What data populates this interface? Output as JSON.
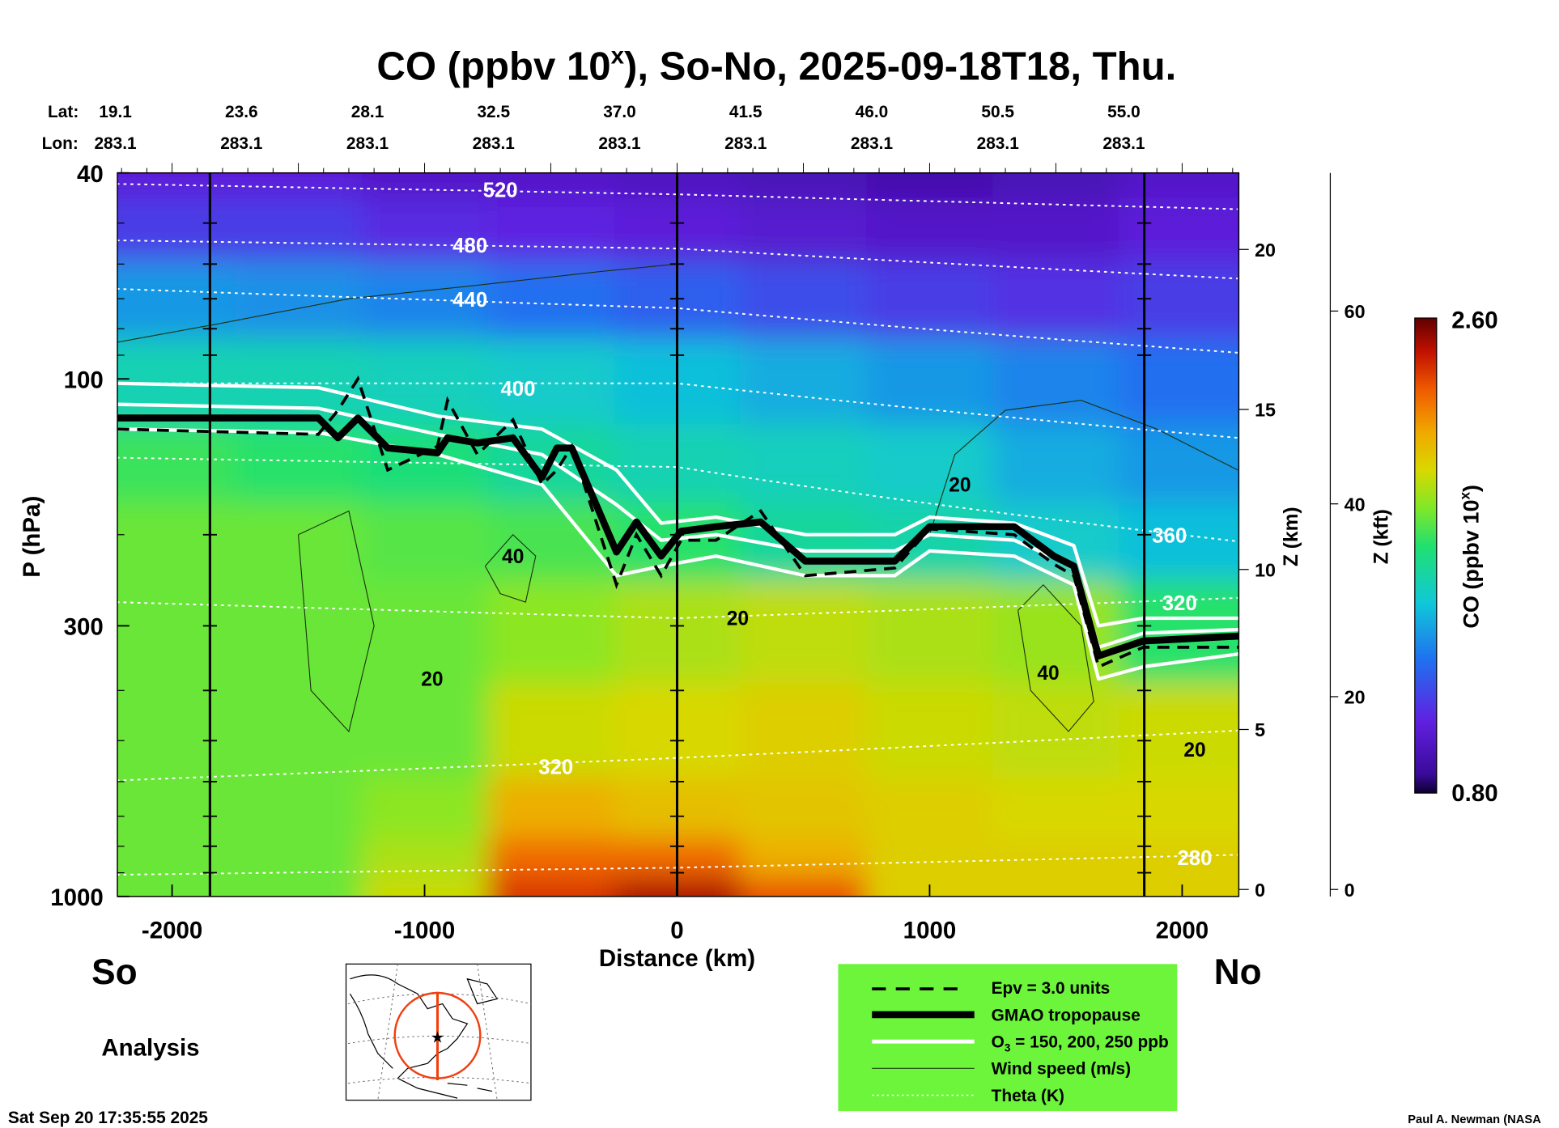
{
  "title": {
    "prefix": "CO (ppbv 10",
    "sup": "x",
    "suffix": "), So-No, 2025-09-18T18, Thu."
  },
  "header": {
    "lat_label": "Lat:",
    "lon_label": "Lon:",
    "lats": [
      "19.1",
      "23.6",
      "28.1",
      "32.5",
      "37.0",
      "41.5",
      "46.0",
      "50.5",
      "55.0"
    ],
    "lons": [
      "283.1",
      "283.1",
      "283.1",
      "283.1",
      "283.1",
      "283.1",
      "283.1",
      "283.1",
      "283.1"
    ]
  },
  "labels": {
    "so": "So",
    "no": "No",
    "analysis": "Analysis",
    "timestamp": "Sat Sep 20 17:35:55 2025",
    "credit": "Paul A. Newman (NASA"
  },
  "legend": {
    "background": "#6cf53a",
    "items": [
      {
        "style": "dashed",
        "label": "Epv = 3.0 units"
      },
      {
        "style": "thick",
        "label": "GMAO tropopause"
      },
      {
        "style": "white",
        "label_prefix": "O",
        "label_sub": "3",
        "label_suffix": " = 150, 200, 250 ppb"
      },
      {
        "style": "thin",
        "label": "Wind speed (m/s)"
      },
      {
        "style": "dotted",
        "label": "Theta (K)"
      }
    ]
  },
  "chart_data": {
    "type": "heatmap",
    "title": "CO (ppbv 10^x), So-No, 2025-09-18T18, Thu.",
    "xlabel": "Distance (km)",
    "ylabel": "P (hPa)",
    "ylabel_right1": "Z (km)",
    "ylabel_right2": "Z (kft)",
    "colorbar_label": "CO (ppbv 10^x)",
    "xlim": [
      -2220,
      2220
    ],
    "ylim": [
      1000,
      40
    ],
    "yscale": "log",
    "x_ticks": [
      -2000,
      -1000,
      0,
      1000,
      2000
    ],
    "x_tick_labels": [
      "-2000",
      "-1000",
      "0",
      "1000",
      "2000"
    ],
    "y_ticks": [
      40,
      100,
      300,
      1000
    ],
    "y_tick_labels": [
      "40",
      "100",
      "300",
      "1000"
    ],
    "z_km_ticks": [
      "0",
      "5",
      "10",
      "15",
      "20"
    ],
    "z_kft_ticks": [
      "0",
      "20",
      "40",
      "60"
    ],
    "colorbar": {
      "min": 0.8,
      "max": 2.6,
      "min_label": "0.80",
      "max_label": "2.60"
    },
    "vertical_lines_km": [
      -1850,
      0,
      1850
    ],
    "grid_distances": [
      -2000,
      -1500,
      -1000,
      -500,
      0,
      500,
      1000,
      1500,
      2000
    ],
    "grid_pressures": [
      40,
      50,
      70,
      100,
      150,
      200,
      300,
      500,
      700,
      850,
      1000
    ],
    "co_values": [
      [
        1.05,
        1.05,
        1.0,
        1.0,
        0.98,
        0.95,
        0.92,
        0.95,
        1.0
      ],
      [
        1.15,
        1.15,
        1.1,
        1.08,
        1.05,
        1.02,
        1.0,
        1.0,
        1.05
      ],
      [
        1.4,
        1.38,
        1.35,
        1.3,
        1.25,
        1.2,
        1.15,
        1.12,
        1.15
      ],
      [
        1.6,
        1.6,
        1.58,
        1.55,
        1.5,
        1.45,
        1.4,
        1.35,
        1.3
      ],
      [
        1.78,
        1.75,
        1.72,
        1.65,
        1.6,
        1.58,
        1.55,
        1.45,
        1.4
      ],
      [
        1.85,
        1.85,
        1.82,
        1.8,
        1.75,
        1.65,
        1.62,
        1.55,
        1.5
      ],
      [
        1.85,
        1.85,
        1.85,
        1.9,
        1.95,
        1.98,
        1.95,
        1.92,
        1.75
      ],
      [
        1.85,
        1.85,
        1.85,
        2.0,
        2.02,
        2.05,
        2.0,
        1.98,
        2.0
      ],
      [
        1.85,
        1.85,
        1.9,
        2.15,
        2.1,
        2.08,
        2.05,
        2.02,
        2.02
      ],
      [
        1.85,
        1.85,
        1.95,
        2.3,
        2.3,
        2.15,
        2.05,
        2.05,
        2.05
      ],
      [
        1.85,
        1.85,
        2.0,
        2.4,
        2.5,
        2.35,
        2.05,
        2.05,
        2.05
      ]
    ],
    "tropopause": {
      "distance": [
        -2217,
        -1421,
        -1343,
        -1264,
        -1146,
        -949,
        -909,
        -791,
        -650,
        -535,
        -476,
        -417,
        -240,
        -161,
        -63,
        16,
        154,
        331,
        508,
        862,
        1000,
        1335,
        1492,
        1571,
        1669,
        1846,
        2224
      ],
      "pressure": [
        119,
        119,
        130,
        119,
        136,
        139,
        130,
        133,
        130,
        155,
        136,
        136,
        216,
        189,
        220,
        197,
        193,
        189,
        225,
        225,
        193,
        193,
        220,
        230,
        343,
        321,
        314
      ]
    },
    "epv": {
      "distance": [
        -2217,
        -1421,
        -1343,
        -1264,
        -1146,
        -949,
        -909,
        -791,
        -650,
        -535,
        -476,
        -417,
        -240,
        -161,
        -63,
        16,
        154,
        331,
        508,
        862,
        1000,
        1335,
        1492,
        1571,
        1669,
        1846,
        2224
      ],
      "pressure": [
        125,
        128,
        115,
        100,
        150,
        135,
        110,
        140,
        120,
        160,
        150,
        135,
        250,
        200,
        240,
        205,
        205,
        180,
        240,
        232,
        195,
        200,
        228,
        240,
        360,
        330,
        330
      ]
    },
    "o3": {
      "distance": [
        -2217,
        -1421,
        -949,
        -535,
        -240,
        -63,
        154,
        508,
        862,
        1000,
        1335,
        1571,
        1669,
        1846,
        2224
      ],
      "series": [
        {
          "name": "150",
          "pressure": [
            102,
            104,
            118,
            125,
            150,
            190,
            185,
            200,
            200,
            185,
            190,
            210,
            300,
            290,
            290
          ]
        },
        {
          "name": "200",
          "pressure": [
            112,
            114,
            128,
            140,
            175,
            205,
            200,
            215,
            215,
            200,
            205,
            230,
            330,
            310,
            305
          ]
        },
        {
          "name": "250",
          "pressure": [
            125,
            127,
            140,
            160,
            240,
            230,
            220,
            240,
            240,
            215,
            220,
            250,
            380,
            360,
            340
          ]
        }
      ]
    },
    "theta": {
      "distance": [
        -2220,
        0,
        2220
      ],
      "series": [
        {
          "label": "520",
          "pressure": [
            42,
            44,
            47
          ],
          "label_at": [
            -700,
            43
          ]
        },
        {
          "label": "480",
          "pressure": [
            54,
            56,
            64
          ],
          "label_at": [
            -820,
            55
          ]
        },
        {
          "label": "440",
          "pressure": [
            67,
            73,
            89
          ],
          "label_at": [
            -820,
            70
          ]
        },
        {
          "label": "400",
          "pressure": [
            102,
            102,
            130
          ],
          "label_at": [
            -630,
            104
          ]
        },
        {
          "label": "360",
          "pressure": [
            142,
            148,
            206
          ],
          "label_at": [
            1950,
            200
          ]
        },
        {
          "label": "320",
          "pressure": [
            270,
            290,
            265
          ],
          "label_at": [
            1990,
            270
          ]
        },
        {
          "label": "320",
          "pressure": [
            597,
            540,
            478
          ],
          "label_at": [
            -480,
            560
          ]
        },
        {
          "label": "280",
          "pressure": [
            908,
            880,
            831
          ],
          "label_at": [
            2050,
            840
          ]
        }
      ]
    },
    "wind_labels": [
      {
        "value": "20",
        "distance": 1120,
        "pressure": 160
      },
      {
        "value": "40",
        "distance": -650,
        "pressure": 220
      },
      {
        "value": "20",
        "distance": -970,
        "pressure": 380
      },
      {
        "value": "20",
        "distance": 240,
        "pressure": 290
      },
      {
        "value": "40",
        "distance": 1470,
        "pressure": 370
      },
      {
        "value": "20",
        "distance": 2050,
        "pressure": 520
      }
    ],
    "wind_contours": [
      {
        "distance": [
          1000,
          1100,
          1300,
          1600,
          1900,
          2220
        ],
        "pressure": [
          200,
          140,
          115,
          110,
          125,
          150
        ]
      },
      {
        "distance": [
          -760,
          -650,
          -560,
          -600,
          -700,
          -760
        ],
        "pressure": [
          230,
          200,
          220,
          270,
          260,
          230
        ]
      },
      {
        "distance": [
          1350,
          1450,
          1600,
          1650,
          1550,
          1400,
          1350
        ],
        "pressure": [
          280,
          250,
          300,
          420,
          480,
          400,
          280
        ]
      },
      {
        "distance": [
          -2220,
          -1800,
          -1300,
          -800,
          -300,
          0
        ],
        "pressure": [
          85,
          78,
          70,
          66,
          62,
          60
        ]
      },
      {
        "distance": [
          -1500,
          -1300,
          -1200,
          -1300,
          -1450,
          -1500
        ],
        "pressure": [
          200,
          180,
          300,
          480,
          400,
          200
        ]
      }
    ]
  }
}
